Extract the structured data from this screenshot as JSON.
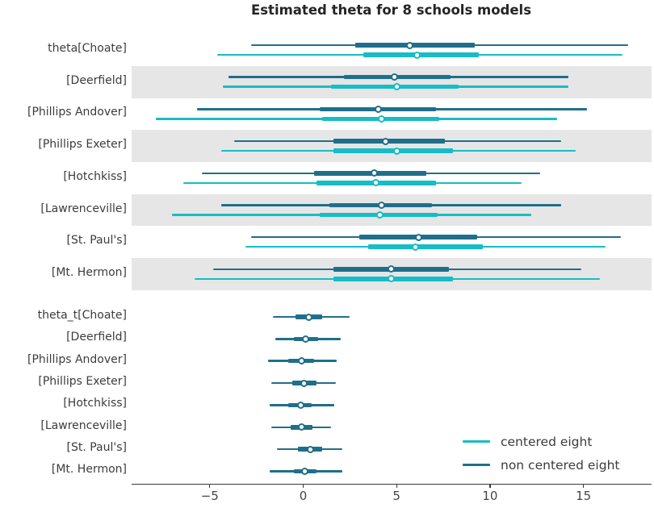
{
  "chart_data": {
    "type": "forest",
    "title": "Estimated theta for 8 schools models",
    "xlabel": "",
    "ylabel": "",
    "xlim": [
      -9.18,
      18.6
    ],
    "x_ticks": [
      {
        "value": -5,
        "label": "−5"
      },
      {
        "value": 0,
        "label": "0"
      },
      {
        "value": 5,
        "label": "5"
      },
      {
        "value": 10,
        "label": "10"
      },
      {
        "value": 15,
        "label": "15"
      }
    ],
    "legend": [
      {
        "label": "centered eight",
        "color": "#16bdc6"
      },
      {
        "label": "non centered eight",
        "color": "#1f6f8b"
      }
    ],
    "legend_position": "lower right",
    "grid": "off",
    "interval_note": "thin line = wide credible interval, thick line = interquartile range, dot = median",
    "groups": [
      {
        "name": "theta",
        "banded": true,
        "rows": [
          {
            "label": "theta[Choate]",
            "series": [
              {
                "name": "non centered eight",
                "hdi": [
                  -2.8,
                  17.4
                ],
                "quartile": [
                  2.8,
                  9.2
                ],
                "median": 5.7
              },
              {
                "name": "centered eight",
                "hdi": [
                  -4.6,
                  17.1
                ],
                "quartile": [
                  3.2,
                  9.4
                ],
                "median": 6.1
              }
            ]
          },
          {
            "label": "[Deerfield]",
            "series": [
              {
                "name": "non centered eight",
                "hdi": [
                  -4.0,
                  14.2
                ],
                "quartile": [
                  2.2,
                  7.9
                ],
                "median": 4.9
              },
              {
                "name": "centered eight",
                "hdi": [
                  -4.3,
                  14.2
                ],
                "quartile": [
                  1.5,
                  8.3
                ],
                "median": 5.0
              }
            ]
          },
          {
            "label": "[Phillips Andover]",
            "series": [
              {
                "name": "non centered eight",
                "hdi": [
                  -5.7,
                  15.2
                ],
                "quartile": [
                  0.9,
                  7.1
                ],
                "median": 4.0
              },
              {
                "name": "centered eight",
                "hdi": [
                  -7.9,
                  13.6
                ],
                "quartile": [
                  1.0,
                  7.3
                ],
                "median": 4.2
              }
            ]
          },
          {
            "label": "[Phillips Exeter]",
            "series": [
              {
                "name": "non centered eight",
                "hdi": [
                  -3.7,
                  13.8
                ],
                "quartile": [
                  1.6,
                  7.6
                ],
                "median": 4.4
              },
              {
                "name": "centered eight",
                "hdi": [
                  -4.4,
                  14.6
                ],
                "quartile": [
                  1.6,
                  8.0
                ],
                "median": 5.0
              }
            ]
          },
          {
            "label": "[Hotchkiss]",
            "series": [
              {
                "name": "non centered eight",
                "hdi": [
                  -5.4,
                  12.7
                ],
                "quartile": [
                  0.6,
                  6.6
                ],
                "median": 3.8
              },
              {
                "name": "centered eight",
                "hdi": [
                  -6.4,
                  11.7
                ],
                "quartile": [
                  0.7,
                  7.1
                ],
                "median": 3.9
              }
            ]
          },
          {
            "label": "[Lawrenceville]",
            "series": [
              {
                "name": "non centered eight",
                "hdi": [
                  -4.4,
                  13.8
                ],
                "quartile": [
                  1.4,
                  6.9
                ],
                "median": 4.2
              },
              {
                "name": "centered eight",
                "hdi": [
                  -7.0,
                  12.2
                ],
                "quartile": [
                  0.9,
                  7.2
                ],
                "median": 4.1
              }
            ]
          },
          {
            "label": "[St. Paul's]",
            "series": [
              {
                "name": "non centered eight",
                "hdi": [
                  -2.8,
                  17.0
                ],
                "quartile": [
                  3.0,
                  9.3
                ],
                "median": 6.2
              },
              {
                "name": "centered eight",
                "hdi": [
                  -3.1,
                  16.2
                ],
                "quartile": [
                  3.5,
                  9.6
                ],
                "median": 6.0
              }
            ]
          },
          {
            "label": "[Mt. Hermon]",
            "series": [
              {
                "name": "non centered eight",
                "hdi": [
                  -4.8,
                  14.9
                ],
                "quartile": [
                  1.6,
                  7.8
                ],
                "median": 4.7
              },
              {
                "name": "centered eight",
                "hdi": [
                  -5.8,
                  15.9
                ],
                "quartile": [
                  1.6,
                  8.0
                ],
                "median": 4.7
              }
            ]
          }
        ]
      },
      {
        "name": "theta_t",
        "banded": false,
        "rows": [
          {
            "label": "theta_t[Choate]",
            "series": [
              {
                "name": "non centered eight",
                "hdi": [
                  -1.6,
                  2.5
                ],
                "quartile": [
                  -0.4,
                  1.0
                ],
                "median": 0.3
              }
            ]
          },
          {
            "label": "[Deerfield]",
            "series": [
              {
                "name": "non centered eight",
                "hdi": [
                  -1.5,
                  2.0
                ],
                "quartile": [
                  -0.5,
                  0.8
                ],
                "median": 0.15
              }
            ]
          },
          {
            "label": "[Phillips Andover]",
            "series": [
              {
                "name": "non centered eight",
                "hdi": [
                  -1.9,
                  1.8
                ],
                "quartile": [
                  -0.8,
                  0.6
                ],
                "median": -0.1
              }
            ]
          },
          {
            "label": "[Phillips Exeter]",
            "series": [
              {
                "name": "non centered eight",
                "hdi": [
                  -1.7,
                  1.75
                ],
                "quartile": [
                  -0.6,
                  0.7
                ],
                "median": 0.05
              }
            ]
          },
          {
            "label": "[Hotchkiss]",
            "series": [
              {
                "name": "non centered eight",
                "hdi": [
                  -1.8,
                  1.65
                ],
                "quartile": [
                  -0.8,
                  0.45
                ],
                "median": -0.15
              }
            ]
          },
          {
            "label": "[Lawrenceville]",
            "series": [
              {
                "name": "non centered eight",
                "hdi": [
                  -1.7,
                  1.5
                ],
                "quartile": [
                  -0.65,
                  0.5
                ],
                "median": -0.1
              }
            ]
          },
          {
            "label": "[St. Paul's]",
            "series": [
              {
                "name": "non centered eight",
                "hdi": [
                  -1.4,
                  2.1
                ],
                "quartile": [
                  -0.3,
                  1.0
                ],
                "median": 0.4
              }
            ]
          },
          {
            "label": "[Mt. Hermon]",
            "series": [
              {
                "name": "non centered eight",
                "hdi": [
                  -1.8,
                  2.1
                ],
                "quartile": [
                  -0.5,
                  0.7
                ],
                "median": 0.1
              }
            ]
          }
        ]
      }
    ]
  }
}
